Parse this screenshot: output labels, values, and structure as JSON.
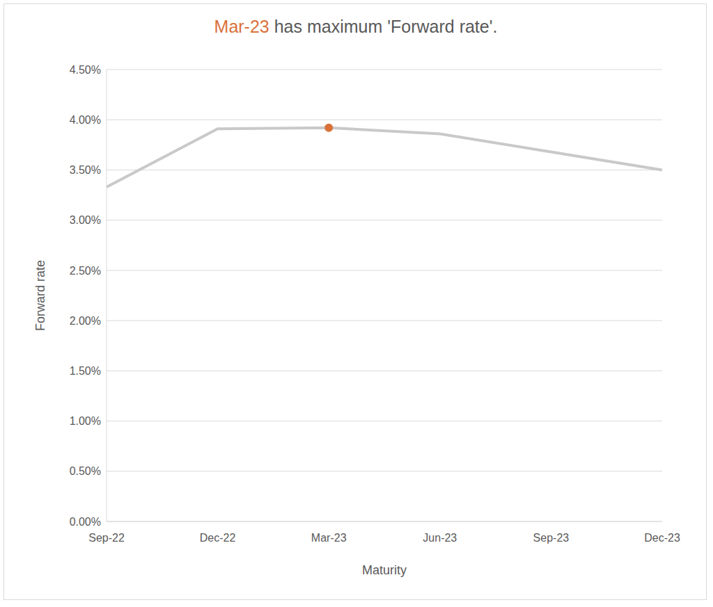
{
  "chart_data": {
    "type": "line",
    "title": "Mar-23 has maximum 'Forward rate'.",
    "x_label": "Maturity",
    "y_label": "Forward rate",
    "categories": [
      "Sep-22",
      "Dec-22",
      "Mar-23",
      "Jun-23",
      "Sep-23",
      "Dec-23"
    ],
    "series": [
      {
        "name": "Forward rate",
        "color": "#c9c9c9",
        "values": [
          3.33,
          3.91,
          3.92,
          3.86,
          3.68,
          3.5
        ]
      }
    ],
    "color": "#d9713a",
    "ylim": [
      0,
      4.5
    ],
    "yticks": [
      {
        "value": 0,
        "label": "0.00%"
      },
      {
        "value": 0.5,
        "label": "0.50%"
      },
      {
        "value": 1,
        "label": "1.00%"
      },
      {
        "value": 1.5,
        "label": "1.50%"
      },
      {
        "value": 2,
        "label": "2.00%"
      },
      {
        "value": 2.5,
        "label": "2.50%"
      },
      {
        "value": 3,
        "label": "3.00%"
      },
      {
        "value": 3.5,
        "label": "3.50%"
      },
      {
        "value": 4,
        "label": "4.00%"
      },
      {
        "value": 4.5,
        "label": "4.50%"
      }
    ],
    "grid": true
  }
}
